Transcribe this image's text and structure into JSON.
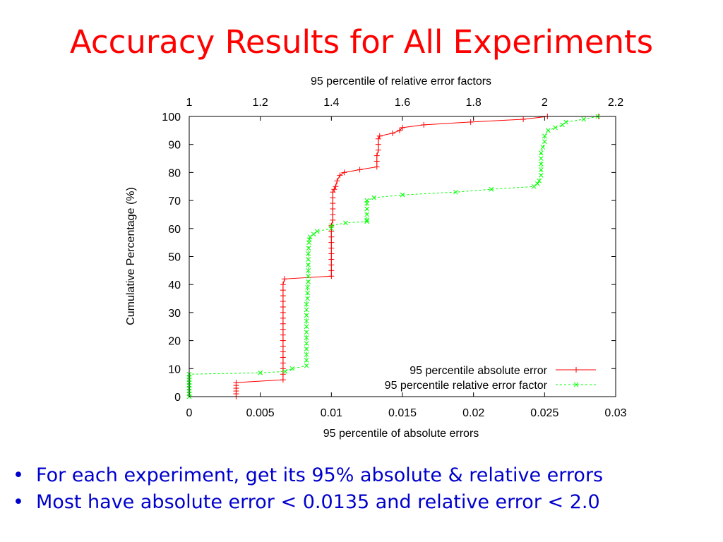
{
  "slide": {
    "title": "Accuracy Results for All Experiments",
    "bullets": [
      "For each experiment, get its 95% absolute & relative errors",
      "Most have absolute error < 0.0135 and relative error < 2.0"
    ],
    "bullet_glyph": "•"
  },
  "chart_data": {
    "type": "line",
    "title": "",
    "xlabel": "95 percentile of absolute errors",
    "x2label": "95 percentile of relative error factors",
    "ylabel": "Cumulative Percentage (%)",
    "xlim": [
      0,
      0.03
    ],
    "x2lim": [
      1,
      2.2
    ],
    "ylim": [
      0,
      100
    ],
    "x_ticks": [
      "0",
      "0.005",
      "0.01",
      "0.015",
      "0.02",
      "0.025",
      "0.03"
    ],
    "x_tick_values": [
      0,
      0.005,
      0.01,
      0.015,
      0.02,
      0.025,
      0.03
    ],
    "x2_ticks": [
      "1",
      "1.2",
      "1.4",
      "1.6",
      "1.8",
      "2",
      "2.2"
    ],
    "x2_tick_values": [
      1,
      1.2,
      1.4,
      1.6,
      1.8,
      2,
      2.2
    ],
    "y_ticks": [
      "0",
      "10",
      "20",
      "30",
      "40",
      "50",
      "60",
      "70",
      "80",
      "90",
      "100"
    ],
    "y_tick_values": [
      0,
      10,
      20,
      30,
      40,
      50,
      60,
      70,
      80,
      90,
      100
    ],
    "grid": false,
    "legend_position": "bottom-right",
    "series": [
      {
        "name": "95 percentile absolute error",
        "axis": "bottom",
        "color": "#ff0000",
        "marker": "plus",
        "dash": "solid",
        "points": [
          [
            0.0033,
            0
          ],
          [
            0.0033,
            1
          ],
          [
            0.0033,
            2
          ],
          [
            0.0033,
            3
          ],
          [
            0.0033,
            4
          ],
          [
            0.0033,
            5
          ],
          [
            0.0066,
            6
          ],
          [
            0.0066,
            8
          ],
          [
            0.0066,
            10
          ],
          [
            0.0066,
            12
          ],
          [
            0.0066,
            14
          ],
          [
            0.0066,
            16
          ],
          [
            0.0066,
            18
          ],
          [
            0.0066,
            20
          ],
          [
            0.0066,
            22
          ],
          [
            0.0066,
            24
          ],
          [
            0.0066,
            26
          ],
          [
            0.0066,
            28
          ],
          [
            0.0066,
            30
          ],
          [
            0.0066,
            32
          ],
          [
            0.0066,
            34
          ],
          [
            0.0066,
            36
          ],
          [
            0.0066,
            38
          ],
          [
            0.0066,
            40
          ],
          [
            0.0067,
            42
          ],
          [
            0.01,
            43
          ],
          [
            0.01,
            45
          ],
          [
            0.01,
            47
          ],
          [
            0.01,
            49
          ],
          [
            0.01,
            51
          ],
          [
            0.01,
            53
          ],
          [
            0.01,
            55
          ],
          [
            0.01,
            57
          ],
          [
            0.01,
            59
          ],
          [
            0.01,
            61
          ],
          [
            0.0101,
            63
          ],
          [
            0.0101,
            65
          ],
          [
            0.0101,
            67
          ],
          [
            0.0101,
            69
          ],
          [
            0.0101,
            71
          ],
          [
            0.0101,
            73
          ],
          [
            0.0102,
            74
          ],
          [
            0.0103,
            75
          ],
          [
            0.0104,
            77
          ],
          [
            0.0106,
            79
          ],
          [
            0.0109,
            80
          ],
          [
            0.012,
            81
          ],
          [
            0.0132,
            82
          ],
          [
            0.0132,
            84
          ],
          [
            0.0132,
            86
          ],
          [
            0.0133,
            88
          ],
          [
            0.0133,
            90
          ],
          [
            0.0133,
            92
          ],
          [
            0.0134,
            93
          ],
          [
            0.0143,
            94
          ],
          [
            0.0148,
            95
          ],
          [
            0.015,
            96
          ],
          [
            0.0165,
            97
          ],
          [
            0.0198,
            98
          ],
          [
            0.0235,
            99
          ],
          [
            0.0252,
            100
          ],
          [
            0.0288,
            100
          ]
        ]
      },
      {
        "name": "95 percentile relative error factor",
        "axis": "top",
        "color": "#00ff00",
        "marker": "cross",
        "dash": "dashed",
        "points": [
          [
            1.0,
            0
          ],
          [
            1.0,
            1
          ],
          [
            1.0,
            2
          ],
          [
            1.0,
            3
          ],
          [
            1.0,
            4
          ],
          [
            1.0,
            5
          ],
          [
            1.0,
            6
          ],
          [
            1.0,
            7
          ],
          [
            1.0,
            8
          ],
          [
            1.2,
            8.5
          ],
          [
            1.27,
            9
          ],
          [
            1.29,
            10
          ],
          [
            1.33,
            11
          ],
          [
            1.33,
            13
          ],
          [
            1.33,
            15
          ],
          [
            1.33,
            17
          ],
          [
            1.33,
            19
          ],
          [
            1.33,
            21
          ],
          [
            1.33,
            23
          ],
          [
            1.33,
            25
          ],
          [
            1.33,
            27
          ],
          [
            1.33,
            29
          ],
          [
            1.33,
            31
          ],
          [
            1.33,
            33
          ],
          [
            1.333,
            35
          ],
          [
            1.333,
            37
          ],
          [
            1.333,
            39
          ],
          [
            1.335,
            41
          ],
          [
            1.335,
            43
          ],
          [
            1.335,
            45
          ],
          [
            1.335,
            47
          ],
          [
            1.335,
            49
          ],
          [
            1.335,
            51
          ],
          [
            1.336,
            53
          ],
          [
            1.337,
            55
          ],
          [
            1.338,
            56
          ],
          [
            1.34,
            57
          ],
          [
            1.35,
            58
          ],
          [
            1.36,
            59
          ],
          [
            1.4,
            60
          ],
          [
            1.4,
            61
          ],
          [
            1.44,
            62
          ],
          [
            1.5,
            62.5
          ],
          [
            1.5,
            63
          ],
          [
            1.5,
            65
          ],
          [
            1.5,
            67
          ],
          [
            1.5,
            69
          ],
          [
            1.5,
            70
          ],
          [
            1.52,
            71
          ],
          [
            1.6,
            72
          ],
          [
            1.75,
            73
          ],
          [
            1.85,
            74
          ],
          [
            1.97,
            75
          ],
          [
            1.98,
            76
          ],
          [
            1.985,
            77
          ],
          [
            1.99,
            79
          ],
          [
            1.99,
            81
          ],
          [
            1.99,
            83
          ],
          [
            1.99,
            85
          ],
          [
            1.99,
            87
          ],
          [
            1.995,
            89
          ],
          [
            2.0,
            91
          ],
          [
            2.0,
            93
          ],
          [
            2.01,
            95
          ],
          [
            2.03,
            96
          ],
          [
            2.05,
            97
          ],
          [
            2.06,
            98
          ],
          [
            2.11,
            99
          ],
          [
            2.15,
            100
          ]
        ]
      }
    ]
  }
}
